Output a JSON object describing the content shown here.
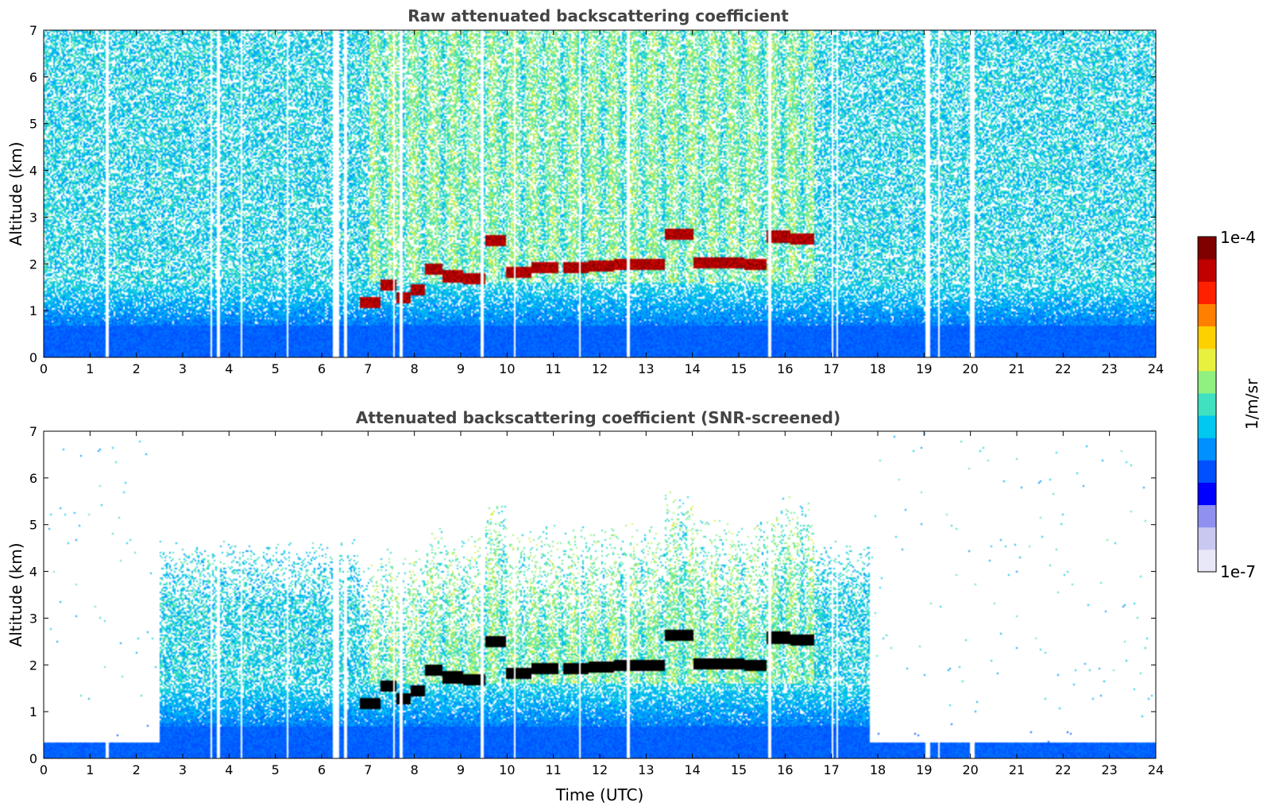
{
  "chart_data": [
    {
      "type": "heatmap",
      "title": "Raw attenuated backscattering coefficient",
      "xlabel": "",
      "ylabel": "Altitude (km)",
      "xlim": [
        0,
        24
      ],
      "ylim": [
        0,
        7
      ],
      "xticks": [
        "0",
        "1",
        "2",
        "3",
        "4",
        "5",
        "6",
        "7",
        "8",
        "9",
        "10",
        "11",
        "12",
        "13",
        "14",
        "15",
        "16",
        "17",
        "18",
        "19",
        "20",
        "21",
        "22",
        "23",
        "24"
      ],
      "yticks": [
        "0",
        "1",
        "2",
        "3",
        "4",
        "5",
        "6",
        "7"
      ],
      "screened": false,
      "cloud_layer": [
        {
          "t": 7.1,
          "alt": 1.2
        },
        {
          "t": 7.4,
          "alt": 1.55
        },
        {
          "t": 7.8,
          "alt": 1.3
        },
        {
          "t": 8.0,
          "alt": 1.45
        },
        {
          "t": 8.4,
          "alt": 1.9
        },
        {
          "t": 8.8,
          "alt": 1.75
        },
        {
          "t": 9.3,
          "alt": 1.7
        },
        {
          "t": 9.7,
          "alt": 2.5
        },
        {
          "t": 10.2,
          "alt": 1.85
        },
        {
          "t": 10.8,
          "alt": 1.95
        },
        {
          "t": 11.5,
          "alt": 1.95
        },
        {
          "t": 12.0,
          "alt": 1.97
        },
        {
          "t": 12.6,
          "alt": 2.0
        },
        {
          "t": 13.1,
          "alt": 2.0
        },
        {
          "t": 13.7,
          "alt": 2.65
        },
        {
          "t": 14.3,
          "alt": 2.05
        },
        {
          "t": 14.9,
          "alt": 2.05
        },
        {
          "t": 15.3,
          "alt": 2.02
        },
        {
          "t": 15.9,
          "alt": 2.6
        },
        {
          "t": 16.3,
          "alt": 2.55
        }
      ],
      "dropouts": [
        1.35,
        3.6,
        3.75,
        4.25,
        5.25,
        6.25,
        6.3,
        6.35,
        6.5,
        7.55,
        7.7,
        9.45,
        10.15,
        11.55,
        12.6,
        15.65,
        17.0,
        17.1,
        19.05,
        19.1,
        19.3,
        20.0,
        20.05
      ]
    },
    {
      "type": "heatmap",
      "title": "Attenuated backscattering coefficient (SNR-screened)",
      "xlabel": "Time (UTC)",
      "ylabel": "Altitude (km)",
      "xlim": [
        0,
        24
      ],
      "ylim": [
        0,
        7
      ],
      "xticks": [
        "0",
        "1",
        "2",
        "3",
        "4",
        "5",
        "6",
        "7",
        "8",
        "9",
        "10",
        "11",
        "12",
        "13",
        "14",
        "15",
        "16",
        "17",
        "18",
        "19",
        "20",
        "21",
        "22",
        "23",
        "24"
      ],
      "yticks": [
        "0",
        "1",
        "2",
        "3",
        "4",
        "5",
        "6",
        "7"
      ],
      "screened": true,
      "cloud_layer": [
        {
          "t": 7.1,
          "alt": 1.2
        },
        {
          "t": 7.4,
          "alt": 1.55
        },
        {
          "t": 7.8,
          "alt": 1.3
        },
        {
          "t": 8.0,
          "alt": 1.45
        },
        {
          "t": 8.4,
          "alt": 1.9
        },
        {
          "t": 8.8,
          "alt": 1.75
        },
        {
          "t": 9.3,
          "alt": 1.7
        },
        {
          "t": 9.7,
          "alt": 2.5
        },
        {
          "t": 10.2,
          "alt": 1.85
        },
        {
          "t": 10.8,
          "alt": 1.95
        },
        {
          "t": 11.5,
          "alt": 1.95
        },
        {
          "t": 12.0,
          "alt": 1.97
        },
        {
          "t": 12.6,
          "alt": 2.0
        },
        {
          "t": 13.1,
          "alt": 2.0
        },
        {
          "t": 13.7,
          "alt": 2.65
        },
        {
          "t": 14.3,
          "alt": 2.05
        },
        {
          "t": 14.9,
          "alt": 2.05
        },
        {
          "t": 15.3,
          "alt": 2.02
        },
        {
          "t": 15.9,
          "alt": 2.6
        },
        {
          "t": 16.3,
          "alt": 2.55
        }
      ],
      "dropouts": [
        1.35,
        3.6,
        3.75,
        4.25,
        5.25,
        6.25,
        6.3,
        6.35,
        6.5,
        7.55,
        7.7,
        9.45,
        10.15,
        11.55,
        12.6,
        15.65,
        17.0,
        17.1,
        19.05,
        19.1,
        19.3,
        20.0,
        20.05
      ]
    }
  ],
  "colorbar": {
    "label": "1/m/sr",
    "max_label": "1e-4",
    "min_label": "1e-7",
    "range": [
      1e-07,
      0.0001
    ],
    "scale": "log",
    "colors": [
      "#e8e8f8",
      "#c8c8f0",
      "#9090f0",
      "#0000ff",
      "#0050ff",
      "#0090ff",
      "#00c8f0",
      "#40e0c0",
      "#90f080",
      "#e8f040",
      "#ffd000",
      "#ff8000",
      "#ff2000",
      "#c00000",
      "#800000"
    ]
  }
}
